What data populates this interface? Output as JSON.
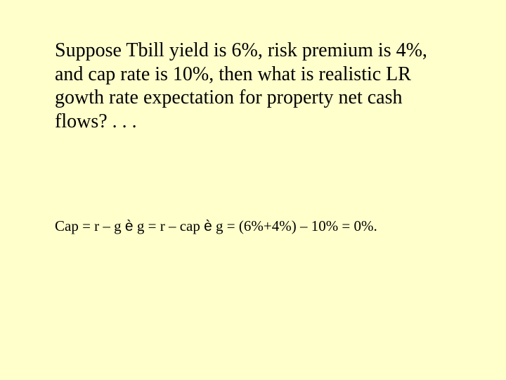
{
  "colors": {
    "background": "#ffffcc",
    "text": "#000000"
  },
  "main": {
    "paragraph": "Suppose Tbill yield is 6%, risk premium is 4%, and cap rate is 10%, then what is realistic LR gowth rate expectation for property net cash flows? . . ."
  },
  "formula": {
    "part1": "Cap = r – g ",
    "arrow1": "è",
    "part2": " g = r – cap ",
    "arrow2": "è",
    "part3": " g = (6%+4%) – 10% = 0%."
  }
}
